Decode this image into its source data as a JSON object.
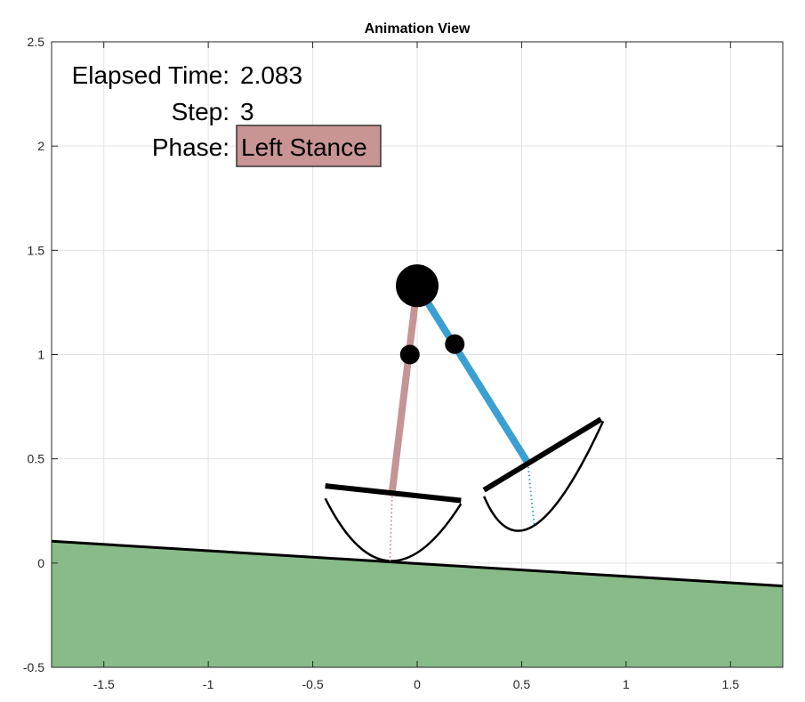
{
  "window": {
    "title": "Animation View"
  },
  "axes": {
    "x_ticks": [
      -1.5,
      -1,
      -0.5,
      0,
      0.5,
      1,
      1.5
    ],
    "x_tick_labels": [
      "-1.5",
      "-1",
      "-0.5",
      "0",
      "0.5",
      "1",
      "1.5"
    ],
    "y_ticks": [
      -0.5,
      0,
      0.5,
      1,
      1.5,
      2,
      2.5
    ],
    "y_tick_labels": [
      "-0.5",
      "0",
      "0.5",
      "1",
      "1.5",
      "2",
      "2.5"
    ],
    "xlim": [
      -1.75,
      1.75
    ],
    "ylim": [
      -0.5,
      2.5
    ],
    "grid": true
  },
  "hud": {
    "elapsed_label": "Elapsed Time:",
    "elapsed_value": "2.083",
    "step_label": "Step:",
    "step_value": "3",
    "phase_label": "Phase:",
    "phase_value": "Left Stance"
  },
  "colors": {
    "ground_fill": "#88bb88",
    "left_leg": "#c59595",
    "right_leg": "#3a9fd2",
    "phase_box": "#c89494",
    "body": "#000000",
    "grid": "#e3e3e3"
  },
  "scene": {
    "ground": [
      [
        -1.75,
        0.105
      ],
      [
        1.75,
        -0.11
      ]
    ],
    "hip": [
      0.0,
      1.33
    ],
    "left_knee": [
      -0.035,
      1.0
    ],
    "right_knee": [
      0.18,
      1.05
    ],
    "left_foot": {
      "ankle": [
        -0.12,
        0.34
      ],
      "contact": [
        -0.13,
        0.01
      ],
      "sole": [
        [
          -0.44,
          0.37
        ],
        [
          0.21,
          0.3
        ]
      ],
      "arc_start": [
        -0.44,
        0.31
      ],
      "arc_end": [
        0.21,
        0.285
      ]
    },
    "right_foot": {
      "ankle": [
        0.53,
        0.48
      ],
      "contact": [
        0.56,
        0.18
      ],
      "sole": [
        [
          0.32,
          0.35
        ],
        [
          0.88,
          0.69
        ]
      ],
      "arc_start": [
        0.32,
        0.32
      ],
      "arc_end": [
        0.89,
        0.68
      ]
    }
  }
}
